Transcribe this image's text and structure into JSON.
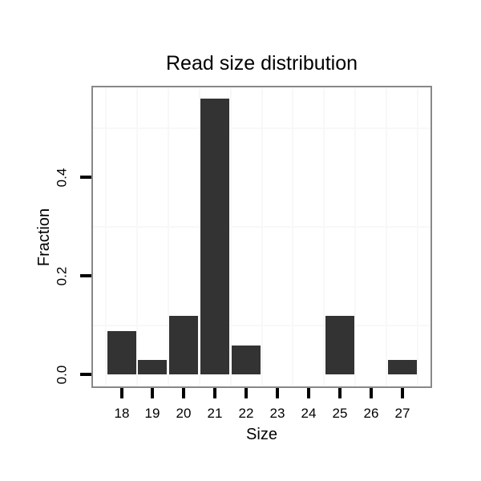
{
  "chart_data": {
    "type": "bar",
    "title": "Read size distribution",
    "xlabel": "Size",
    "ylabel": "Fraction",
    "categories": [
      18,
      19,
      20,
      21,
      22,
      23,
      24,
      25,
      26,
      27
    ],
    "values": [
      0.088,
      0.029,
      0.118,
      0.559,
      0.059,
      0,
      0,
      0.118,
      0,
      0.029
    ],
    "x_tick_labels": [
      "18",
      "19",
      "20",
      "21",
      "22",
      "23",
      "24",
      "25",
      "26",
      "27"
    ],
    "y_tick_values": [
      0.0,
      0.2,
      0.4
    ],
    "y_tick_labels": [
      "0.0",
      "0.2",
      "0.4"
    ],
    "ylim": [
      0,
      0.588
    ],
    "bar_width_units": 0.9,
    "grid": "minor-only",
    "minor_gridlines_x": [
      17.5,
      18.5,
      19.5,
      20.5,
      21.5,
      22.5,
      23.5,
      24.5,
      25.5,
      26.5,
      27.5
    ],
    "minor_gridlines_y": [
      0.1,
      0.3,
      0.5
    ],
    "legend_position": "none",
    "colors": {
      "bar": "#333333",
      "panel_border": "#888888",
      "gridline": "#f8f8f8",
      "tick": "#000000",
      "text": "#000000",
      "panel_background": "#ffffff",
      "figure_background": "#ffffff"
    }
  }
}
